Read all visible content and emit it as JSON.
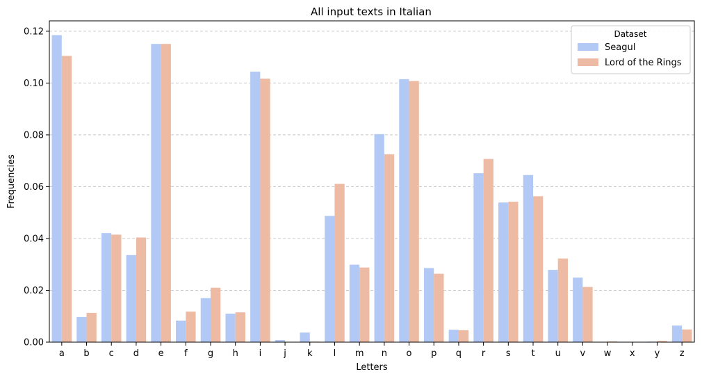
{
  "chart_data": {
    "type": "bar",
    "title": "All input texts in Italian",
    "xlabel": "Letters",
    "ylabel": "Frequencies",
    "ylim": [
      0,
      0.124
    ],
    "yticks": [
      "0.00",
      "0.02",
      "0.04",
      "0.06",
      "0.08",
      "0.10",
      "0.12"
    ],
    "grid": "y-dashed",
    "legend": {
      "title": "Dataset",
      "placement": "top-right"
    },
    "categories": [
      "a",
      "b",
      "c",
      "d",
      "e",
      "f",
      "g",
      "h",
      "i",
      "j",
      "k",
      "l",
      "m",
      "n",
      "o",
      "p",
      "q",
      "r",
      "s",
      "t",
      "u",
      "v",
      "w",
      "x",
      "y",
      "z"
    ],
    "series": [
      {
        "name": "Seagul",
        "color": "#b3c9f5",
        "values": [
          0.1185,
          0.0097,
          0.0421,
          0.0336,
          0.1151,
          0.0083,
          0.017,
          0.011,
          0.1044,
          0.0008,
          0.0037,
          0.0487,
          0.0299,
          0.0803,
          0.1015,
          0.0286,
          0.0048,
          0.0652,
          0.0539,
          0.0645,
          0.0279,
          0.0249,
          0.0,
          0.0,
          0.0002,
          0.0064
        ]
      },
      {
        "name": "Lord of the Rings",
        "color": "#edbba4",
        "values": [
          0.1105,
          0.0113,
          0.0415,
          0.0404,
          0.1151,
          0.0118,
          0.021,
          0.0115,
          0.1017,
          0.0,
          0.0002,
          0.0611,
          0.0288,
          0.0725,
          0.1008,
          0.0264,
          0.0046,
          0.0707,
          0.0542,
          0.0563,
          0.0323,
          0.0213,
          0.0003,
          0.0,
          0.0005,
          0.0049
        ]
      }
    ]
  }
}
